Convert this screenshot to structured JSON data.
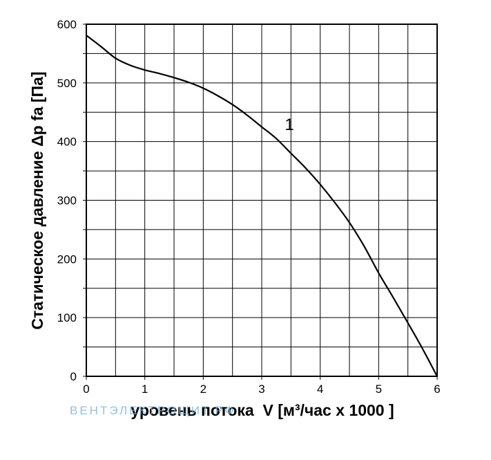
{
  "chart_data": {
    "type": "line",
    "title": "",
    "xlabel": "уровень потока  V [м³/час x 1000 ]",
    "ylabel": "Статическое давление  Δp fa [Па]",
    "xlim": [
      0,
      6
    ],
    "ylim": [
      0,
      600
    ],
    "x_ticks": [
      "0",
      "1",
      "2",
      "3",
      "4",
      "5",
      "6"
    ],
    "y_ticks": [
      "0",
      "100",
      "200",
      "300",
      "400",
      "500",
      "600"
    ],
    "grid": true,
    "grid_x_step": 0.5,
    "grid_y_step": 50,
    "series": [
      {
        "name": "1",
        "x": [
          0,
          0.25,
          0.5,
          0.75,
          1.0,
          1.25,
          1.5,
          1.75,
          2.0,
          2.25,
          2.5,
          2.75,
          3.0,
          3.25,
          3.5,
          3.75,
          4.0,
          4.25,
          4.5,
          4.75,
          5.0,
          5.25,
          5.5,
          5.75,
          6.0
        ],
        "y": [
          581,
          562,
          542,
          530,
          522,
          516,
          509,
          501,
          491,
          478,
          463,
          445,
          425,
          405,
          380,
          355,
          327,
          296,
          262,
          222,
          176,
          134,
          91,
          47,
          0
        ],
        "label": "1",
        "label_at": [
          3.3,
          427
        ]
      }
    ],
    "color": "#000000"
  },
  "watermark": {
    "text": "ВЕНТЭЛЕКТРОЩИТ.РФ"
  }
}
